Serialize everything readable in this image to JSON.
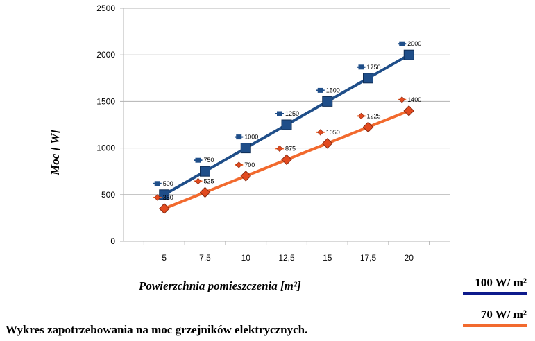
{
  "chart_data": {
    "type": "line",
    "categories": [
      "5",
      "7,5",
      "10",
      "12,5",
      "15",
      "17,5",
      "20"
    ],
    "series": [
      {
        "name": "100 W/ m²",
        "values": [
          500,
          750,
          1000,
          1250,
          1500,
          1750,
          2000
        ],
        "color": "#1f4e89"
      },
      {
        "name": "70 W/ m²",
        "values": [
          350,
          525,
          700,
          875,
          1050,
          1225,
          1400
        ],
        "color": "#f26a2e"
      }
    ],
    "ylim": [
      0,
      2500
    ],
    "yticks": [
      0,
      500,
      1000,
      1500,
      2000,
      2500
    ],
    "ylabel": "Moc  [ W]",
    "xlabel": "Powierzchnia pomieszczenia  [m²]",
    "grid": true,
    "legend_position": "bottom-right",
    "data_labels": true
  },
  "legend": {
    "series_1": {
      "label": "100 W/ m²",
      "color": "#0d1a8c"
    },
    "series_2": {
      "label": "70 W/ m²",
      "color": "#f26a2e"
    }
  },
  "caption": "Wykres zapotrzebowania na moc grzejników elektrycznych."
}
